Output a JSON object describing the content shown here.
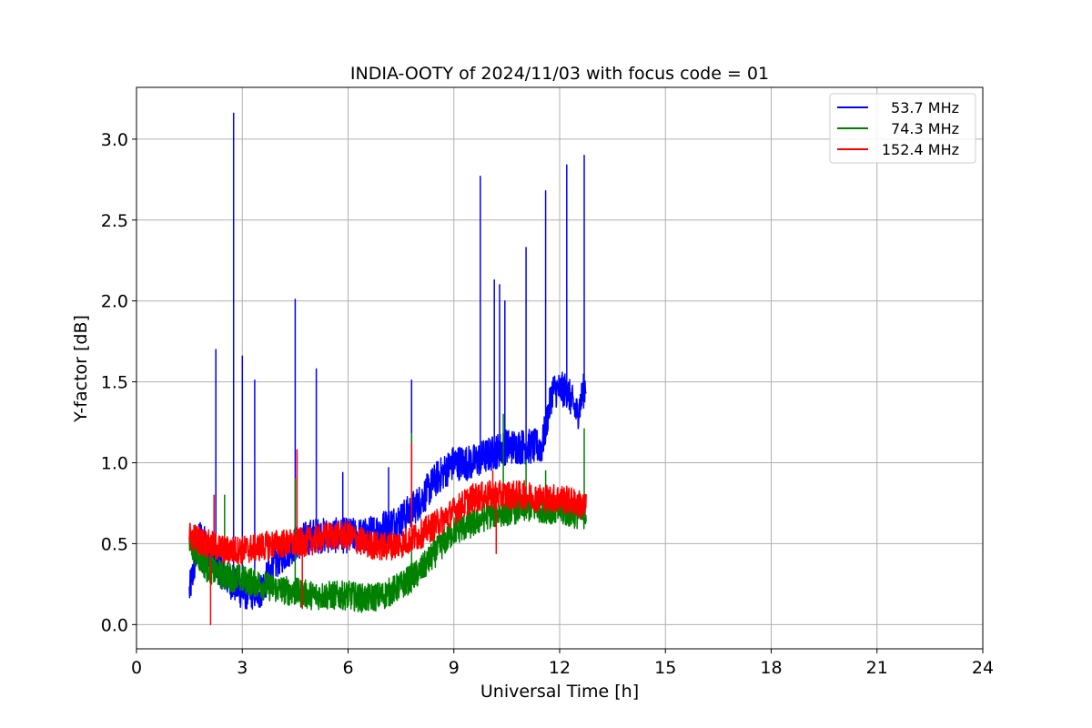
{
  "chart_data": {
    "type": "line",
    "title": "INDIA-OOTY of 2024/11/03 with focus code = 01",
    "xlabel": "Universal Time [h]",
    "ylabel": "Y-factor [dB]",
    "xlim": [
      0,
      24
    ],
    "ylim": [
      -0.15,
      3.32
    ],
    "xticks": [
      0,
      3,
      6,
      9,
      12,
      15,
      18,
      21,
      24
    ],
    "xtick_labels": [
      "0",
      "3",
      "6",
      "9",
      "12",
      "15",
      "18",
      "21",
      "24"
    ],
    "yticks": [
      0.0,
      0.5,
      1.0,
      1.5,
      2.0,
      2.5,
      3.0
    ],
    "ytick_labels": [
      "0.0",
      "0.5",
      "1.0",
      "1.5",
      "2.0",
      "2.5",
      "3.0"
    ],
    "grid": true,
    "legend_position": "top-right",
    "series": [
      {
        "name": "53.7 MHz",
        "color": "#0000ff",
        "x": [
          1.5,
          1.8,
          2.1,
          2.5,
          3.0,
          3.5,
          4.0,
          4.5,
          5.0,
          5.5,
          6.0,
          6.5,
          7.0,
          7.5,
          8.0,
          8.5,
          9.0,
          9.5,
          10.0,
          10.5,
          11.0,
          11.5,
          11.8,
          12.2,
          12.5,
          12.75
        ],
        "y": [
          0.2,
          0.55,
          0.45,
          0.3,
          0.2,
          0.2,
          0.4,
          0.5,
          0.55,
          0.55,
          0.55,
          0.55,
          0.6,
          0.65,
          0.75,
          0.9,
          1.0,
          1.0,
          1.05,
          1.1,
          1.1,
          1.1,
          1.45,
          1.45,
          1.3,
          1.5
        ],
        "spikes": [
          [
            2.25,
            1.7
          ],
          [
            2.75,
            3.16
          ],
          [
            3.0,
            1.66
          ],
          [
            3.35,
            1.51
          ],
          [
            4.5,
            2.01
          ],
          [
            5.1,
            1.58
          ],
          [
            5.85,
            0.94
          ],
          [
            7.15,
            0.97
          ],
          [
            7.8,
            1.51
          ],
          [
            9.75,
            2.77
          ],
          [
            10.15,
            2.13
          ],
          [
            10.3,
            2.1
          ],
          [
            10.45,
            2.0
          ],
          [
            11.05,
            2.33
          ],
          [
            11.6,
            2.68
          ],
          [
            12.2,
            2.84
          ],
          [
            12.7,
            2.9
          ]
        ]
      },
      {
        "name": "74.3 MHz",
        "color": "#008000",
        "x": [
          1.5,
          2.0,
          2.5,
          3.0,
          3.5,
          4.0,
          4.5,
          5.0,
          5.5,
          6.0,
          6.5,
          7.0,
          7.5,
          8.0,
          8.5,
          9.0,
          9.5,
          10.0,
          10.5,
          11.0,
          11.5,
          12.0,
          12.5,
          12.75
        ],
        "y": [
          0.5,
          0.35,
          0.3,
          0.28,
          0.25,
          0.22,
          0.2,
          0.18,
          0.18,
          0.18,
          0.16,
          0.18,
          0.24,
          0.32,
          0.45,
          0.58,
          0.62,
          0.68,
          0.7,
          0.72,
          0.72,
          0.7,
          0.68,
          0.68
        ],
        "spikes": [
          [
            2.5,
            0.8
          ],
          [
            4.5,
            0.9
          ],
          [
            7.8,
            1.18
          ],
          [
            10.4,
            1.3
          ],
          [
            11.05,
            1.02
          ],
          [
            11.6,
            0.95
          ],
          [
            12.7,
            1.21
          ]
        ]
      },
      {
        "name": "152.4 MHz",
        "color": "#ff0000",
        "x": [
          1.5,
          2.0,
          2.5,
          3.0,
          3.5,
          4.0,
          4.5,
          5.0,
          5.5,
          6.0,
          6.5,
          7.0,
          7.5,
          8.0,
          8.5,
          9.0,
          9.5,
          10.0,
          10.5,
          11.0,
          11.5,
          12.0,
          12.5,
          12.75
        ],
        "y": [
          0.55,
          0.5,
          0.46,
          0.46,
          0.48,
          0.5,
          0.5,
          0.52,
          0.55,
          0.55,
          0.5,
          0.48,
          0.5,
          0.55,
          0.62,
          0.7,
          0.78,
          0.8,
          0.8,
          0.8,
          0.78,
          0.78,
          0.75,
          0.72
        ],
        "spikes": [
          [
            2.2,
            0.8
          ],
          [
            4.55,
            1.08
          ],
          [
            7.8,
            1.12
          ],
          [
            10.1,
            0.95
          ]
        ],
        "dips": [
          [
            2.1,
            0.0
          ],
          [
            10.2,
            0.44
          ],
          [
            4.7,
            0.1
          ]
        ]
      }
    ]
  }
}
